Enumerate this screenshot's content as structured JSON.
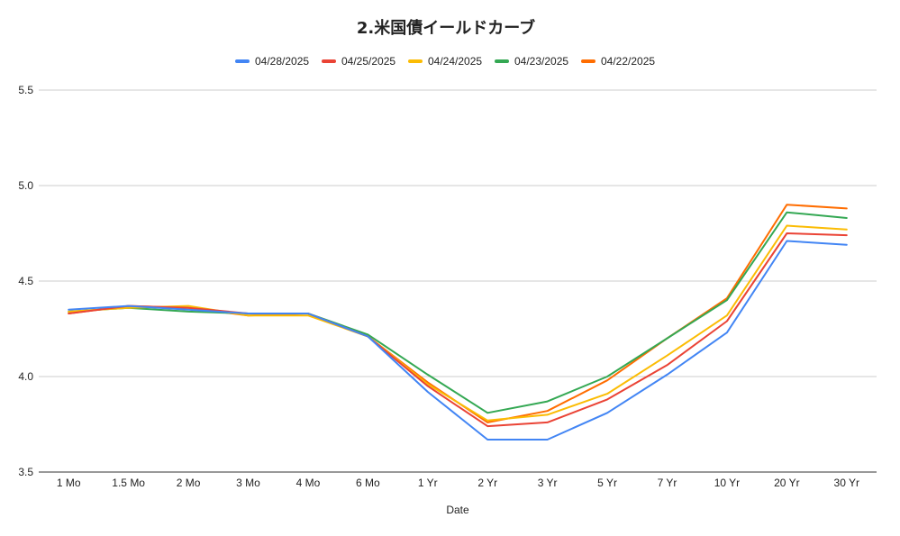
{
  "chart_data": {
    "type": "line",
    "title": "2.米国債イールドカーブ",
    "xlabel": "Date",
    "ylabel": "",
    "ylim": [
      3.5,
      5.5
    ],
    "yticks": [
      "3.5",
      "4.0",
      "4.5",
      "5.0",
      "5.5"
    ],
    "grid": true,
    "legend_position": "top",
    "categories": [
      "1 Mo",
      "1.5 Mo",
      "2 Mo",
      "3 Mo",
      "4 Mo",
      "6 Mo",
      "1 Yr",
      "2 Yr",
      "3 Yr",
      "5 Yr",
      "7 Yr",
      "10 Yr",
      "20 Yr",
      "30 Yr"
    ],
    "series": [
      {
        "name": "04/28/2025",
        "color": "#4285f4",
        "values": [
          4.35,
          4.37,
          4.35,
          4.33,
          4.33,
          4.21,
          3.92,
          3.67,
          3.67,
          3.81,
          4.01,
          4.23,
          4.71,
          4.69
        ]
      },
      {
        "name": "04/25/2025",
        "color": "#ea4335",
        "values": [
          4.33,
          4.37,
          4.36,
          4.33,
          4.33,
          4.21,
          3.95,
          3.74,
          3.76,
          3.88,
          4.06,
          4.29,
          4.75,
          4.74
        ]
      },
      {
        "name": "04/24/2025",
        "color": "#fbbc04",
        "values": [
          4.34,
          4.36,
          4.37,
          4.32,
          4.32,
          4.21,
          3.96,
          3.77,
          3.8,
          3.91,
          4.11,
          4.32,
          4.79,
          4.77
        ]
      },
      {
        "name": "04/23/2025",
        "color": "#34a853",
        "values": [
          4.34,
          4.36,
          4.34,
          4.33,
          4.33,
          4.22,
          4.01,
          3.81,
          3.87,
          4.0,
          4.2,
          4.4,
          4.86,
          4.83
        ]
      },
      {
        "name": "04/22/2025",
        "color": "#ff6d01",
        "values": [
          4.33,
          4.37,
          4.36,
          4.32,
          4.33,
          4.21,
          3.97,
          3.76,
          3.82,
          3.98,
          4.2,
          4.41,
          4.9,
          4.88
        ]
      }
    ]
  }
}
